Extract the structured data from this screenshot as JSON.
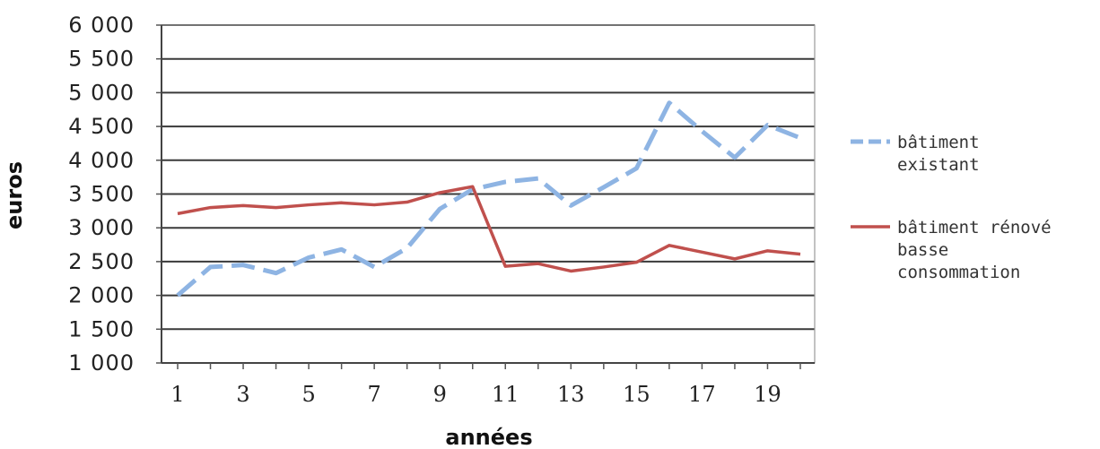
{
  "chart_data": {
    "type": "line",
    "title": "",
    "xlabel": "années",
    "ylabel": "euros",
    "ylim": [
      1000,
      6000
    ],
    "y_ticks": [
      {
        "value": 1000,
        "label": "1 000"
      },
      {
        "value": 1500,
        "label": "1 500"
      },
      {
        "value": 2000,
        "label": "2 000"
      },
      {
        "value": 2500,
        "label": "2 500"
      },
      {
        "value": 3000,
        "label": "3 000"
      },
      {
        "value": 3500,
        "label": "3 500"
      },
      {
        "value": 4000,
        "label": "4 000"
      },
      {
        "value": 4500,
        "label": "4 500"
      },
      {
        "value": 5000,
        "label": "5 000"
      },
      {
        "value": 5500,
        "label": "5 500"
      },
      {
        "value": 6000,
        "label": "6 000"
      }
    ],
    "x": [
      1,
      2,
      3,
      4,
      5,
      6,
      7,
      8,
      9,
      10,
      11,
      12,
      13,
      14,
      15,
      16,
      17,
      18,
      19,
      20
    ],
    "x_tick_labels": [
      "1",
      "3",
      "5",
      "7",
      "9",
      "11",
      "13",
      "15",
      "17",
      "19"
    ],
    "grid": true,
    "legend_position": "right",
    "series": [
      {
        "name": "bâtiment existant",
        "style": "dashed",
        "color": "#8eb4e3",
        "values": [
          2000,
          2420,
          2450,
          2330,
          2560,
          2680,
          2420,
          2700,
          3280,
          3570,
          3680,
          3730,
          3330,
          3600,
          3880,
          4850,
          4430,
          4040,
          4520,
          4330
        ]
      },
      {
        "name": "bâtiment rénové basse consommation",
        "style": "solid",
        "color": "#c0504d",
        "values": [
          3210,
          3300,
          3330,
          3300,
          3340,
          3370,
          3340,
          3380,
          3520,
          3610,
          2430,
          2470,
          2360,
          2420,
          2490,
          2740,
          2640,
          2540,
          2660,
          2610
        ]
      }
    ]
  },
  "legend": {
    "series_1_lines": [
      "bâtiment",
      "existant"
    ],
    "series_2_lines": [
      "bâtiment rénové",
      "basse",
      "consommation"
    ]
  }
}
